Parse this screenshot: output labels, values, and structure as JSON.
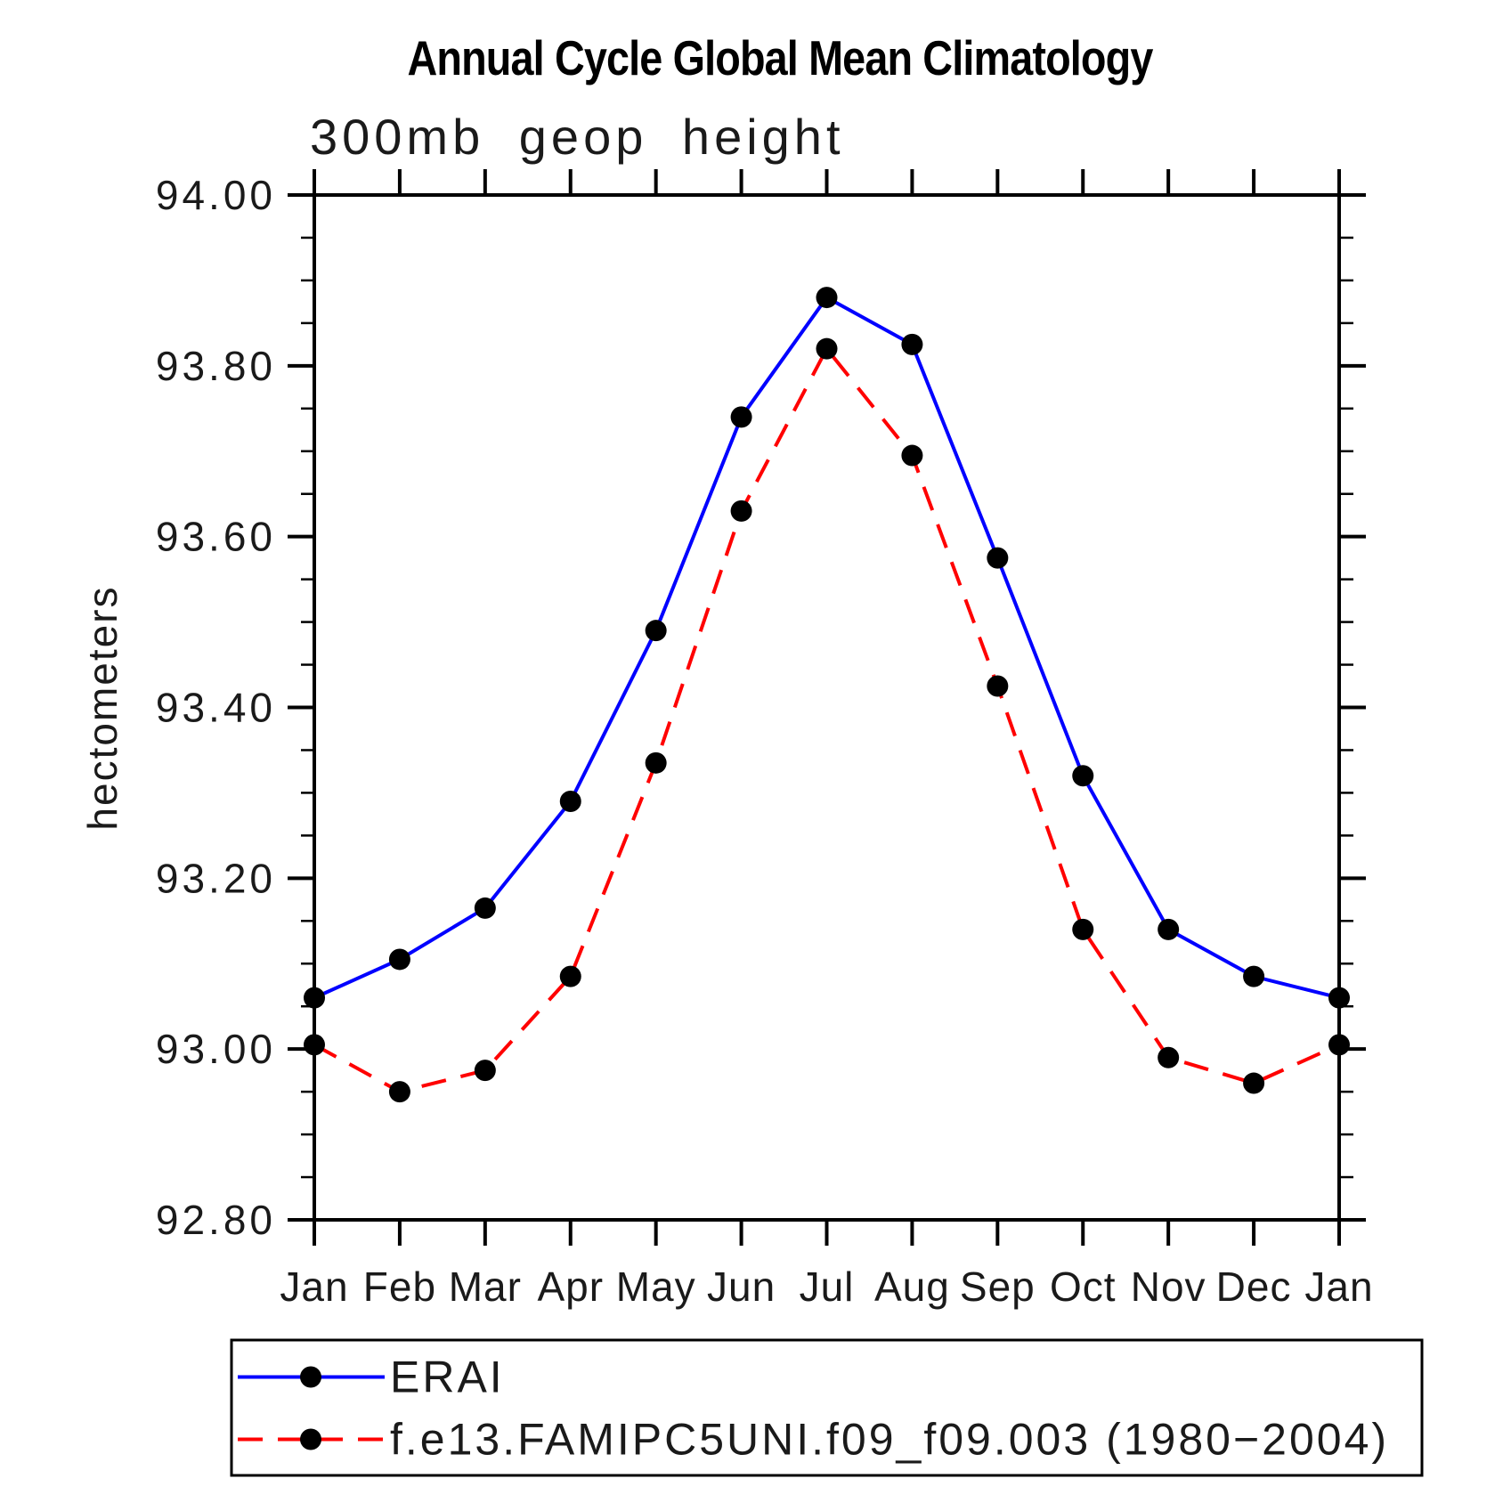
{
  "chart_data": {
    "type": "line",
    "title": "Annual Cycle Global Mean Climatology",
    "subtitle": "300mb geop height",
    "xlabel": "",
    "ylabel": "hectometers",
    "x_categories": [
      "Jan",
      "Feb",
      "Mar",
      "Apr",
      "May",
      "Jun",
      "Jul",
      "Aug",
      "Sep",
      "Oct",
      "Nov",
      "Dec",
      "Jan"
    ],
    "ylim": [
      92.8,
      94.0
    ],
    "ytick_major_step": 0.2,
    "ytick_minor_step": 0.05,
    "ytick_labels": [
      "94.00",
      "93.80",
      "93.60",
      "93.40",
      "93.20",
      "93.00",
      "92.80"
    ],
    "grid": false,
    "legend_position": "bottom",
    "series": [
      {
        "name": "ERAI",
        "color": "#0000ff",
        "line_style": "solid",
        "marker": "filled-circle",
        "marker_color": "#000000",
        "values": [
          93.06,
          93.105,
          93.165,
          93.29,
          93.49,
          93.74,
          93.88,
          93.825,
          93.575,
          93.32,
          93.14,
          93.085,
          93.06
        ]
      },
      {
        "name": "f.e13.FAMIPC5UNI.f09_f09.003 (1980−2004)",
        "color": "#ff0000",
        "line_style": "dashed",
        "marker": "filled-circle",
        "marker_color": "#000000",
        "values": [
          93.005,
          92.95,
          92.975,
          93.085,
          93.335,
          93.63,
          93.82,
          93.695,
          93.425,
          93.14,
          92.99,
          92.96,
          93.005
        ]
      }
    ]
  }
}
